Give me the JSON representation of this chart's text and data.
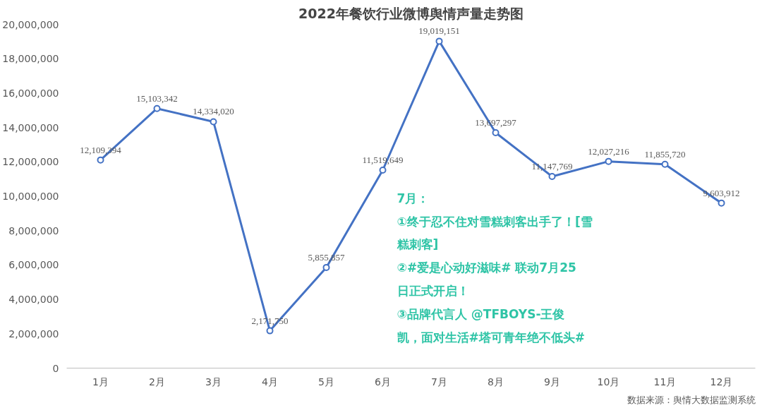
{
  "chart_data": {
    "type": "line",
    "title": "2022年餐饮行业微博舆情声量走势图",
    "categories": [
      "1月",
      "2月",
      "3月",
      "4月",
      "5月",
      "6月",
      "7月",
      "8月",
      "9月",
      "10月",
      "11月",
      "12月"
    ],
    "series": [
      {
        "color": "#4472c4",
        "values": [
          12109394,
          15103342,
          14334020,
          2171750,
          5855857,
          11519649,
          19019151,
          13697297,
          11147769,
          12027216,
          11855720,
          9603912
        ]
      }
    ],
    "ylim": [
      0,
      20000000
    ],
    "yticks": [
      {
        "value": 0,
        "label": "0"
      },
      {
        "value": 2000000,
        "label": "2,000,000"
      },
      {
        "value": 4000000,
        "label": "4,000,000"
      },
      {
        "value": 6000000,
        "label": "6,000,000"
      },
      {
        "value": 8000000,
        "label": "8,000,000"
      },
      {
        "value": 10000000,
        "label": "10,000,000"
      },
      {
        "value": 12000000,
        "label": "12,000,000"
      },
      {
        "value": 14000000,
        "label": "14,000,000"
      },
      {
        "value": 16000000,
        "label": "16,000,000"
      },
      {
        "value": 18000000,
        "label": "18,000,000"
      },
      {
        "value": 20000000,
        "label": "20,000,000"
      }
    ],
    "value_labels": [
      "12,109,394",
      "15,103,342",
      "14,334,020",
      "2,171,750",
      "5,855,857",
      "11,519,649",
      "19,019,151",
      "13,697,297",
      "11,147,769",
      "12,027,216",
      "11,855,720",
      "9,603,912"
    ],
    "marker": "circle",
    "line_style": "solid",
    "grid": false,
    "annotations": [
      "7月：",
      "①终于忍不住对雪糕刺客出手了！[雪糕刺客]",
      "②#爱是心动好滋味# 联动7月25日正式开启！",
      "③品牌代言人 @TFBOYS-王俊凯，面对生活#塔可青年绝不低头#",
      "数据来源：舆情大数据监测系统"
    ]
  }
}
